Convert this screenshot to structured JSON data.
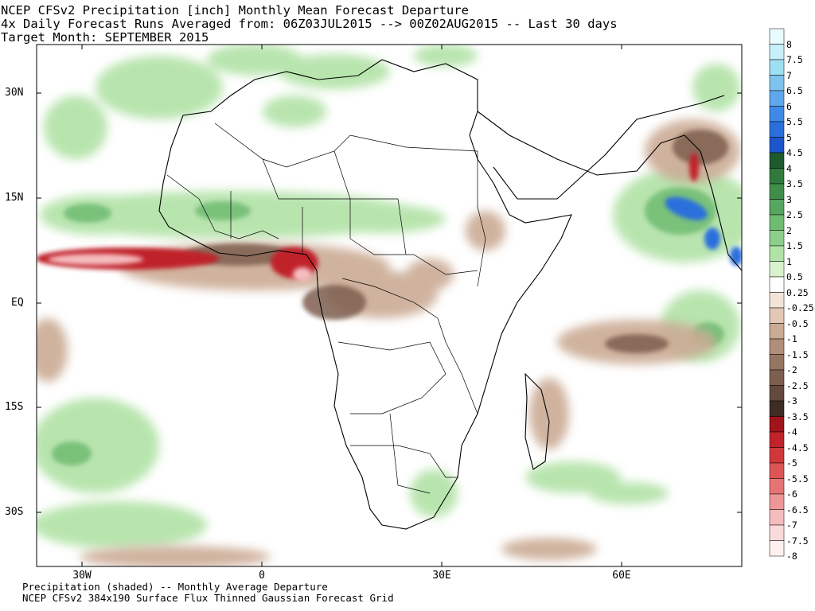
{
  "header": {
    "line1": "NCEP CFSv2 Precipitation [inch] Monthly Mean Forecast Departure",
    "line2": "4x Daily Forecast Runs Averaged from: 06Z03JUL2015 --> 00Z02AUG2015 -- Last 30 days",
    "line3": "Target Month: SEPTEMBER 2015"
  },
  "axes": {
    "lat_labels": [
      "30N",
      "15N",
      "EQ",
      "15S",
      "30S"
    ],
    "lon_labels": [
      "30W",
      "0",
      "30E",
      "60E"
    ]
  },
  "footer": {
    "line1": "Precipitation (shaded) -- Monthly Average Departure",
    "line2": "NCEP CFSv2 384x190 Surface Flux Thinned Gaussian Forecast Grid"
  },
  "colorbar": {
    "levels": [
      {
        "label": "8",
        "color": "#e8fbff"
      },
      {
        "label": "7.5",
        "color": "#c8f0fa"
      },
      {
        "label": "7",
        "color": "#9fdff3"
      },
      {
        "label": "6.5",
        "color": "#7ec4ee"
      },
      {
        "label": "6",
        "color": "#5fa8ec"
      },
      {
        "label": "5.5",
        "color": "#3f8ae6"
      },
      {
        "label": "5",
        "color": "#2a6fdc"
      },
      {
        "label": "4.5",
        "color": "#1c55cc"
      },
      {
        "label": "4",
        "color": "#1e5a2e"
      },
      {
        "label": "3.5",
        "color": "#2f7a3c"
      },
      {
        "label": "3",
        "color": "#3f8f4b"
      },
      {
        "label": "2.5",
        "color": "#56a560"
      },
      {
        "label": "2",
        "color": "#6fbb72"
      },
      {
        "label": "1.5",
        "color": "#8dcf8a"
      },
      {
        "label": "1",
        "color": "#b1e2a6"
      },
      {
        "label": "0.5",
        "color": "#d7f2cc"
      },
      {
        "label": "0.25",
        "color": "#ffffff"
      },
      {
        "label": "-0.25",
        "color": "#f3e4d8"
      },
      {
        "label": "-0.5",
        "color": "#e2c8b5"
      },
      {
        "label": "-1",
        "color": "#cbab94"
      },
      {
        "label": "-1.5",
        "color": "#b08e79"
      },
      {
        "label": "-2",
        "color": "#977563"
      },
      {
        "label": "-2.5",
        "color": "#7e5e4f"
      },
      {
        "label": "-3",
        "color": "#64493d"
      },
      {
        "label": "-3.5",
        "color": "#3e2c25"
      },
      {
        "label": "-4",
        "color": "#a1141c"
      },
      {
        "label": "-4.5",
        "color": "#c0242a"
      },
      {
        "label": "-5",
        "color": "#d0383b"
      },
      {
        "label": "-5.5",
        "color": "#dd5556"
      },
      {
        "label": "-6",
        "color": "#e77475"
      },
      {
        "label": "-6.5",
        "color": "#ee9799"
      },
      {
        "label": "-7",
        "color": "#f5bcbe"
      },
      {
        "label": "-7.5",
        "color": "#fadada"
      },
      {
        "label": "-8",
        "color": "#fff0f0"
      }
    ]
  }
}
